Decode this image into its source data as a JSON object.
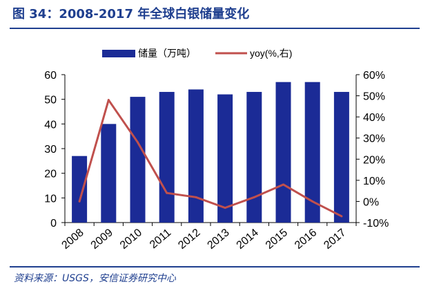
{
  "figure_title": "图 34：2008-2017 年全球白银储量变化",
  "source": "资料来源：USGS，安信证券研究中心",
  "colors": {
    "bar": "#1b2b96",
    "line": "#c0504d",
    "title": "#1f3f8f",
    "axis": "#000000"
  },
  "chart_data": {
    "type": "bar",
    "title": "",
    "categories": [
      "2008",
      "2009",
      "2010",
      "2011",
      "2012",
      "2013",
      "2014",
      "2015",
      "2016",
      "2017"
    ],
    "series": [
      {
        "name": "储量（万吨）",
        "type": "bar",
        "axis": "left",
        "values": [
          27,
          40,
          51,
          53,
          54,
          52,
          53,
          57,
          57,
          53
        ]
      },
      {
        "name": "yoy(%,右)",
        "type": "line",
        "axis": "right",
        "values": [
          0,
          48,
          28,
          4,
          2,
          -3,
          2,
          8,
          0,
          -7
        ]
      }
    ],
    "y_left": {
      "min": 0,
      "max": 60,
      "ticks": [
        "0",
        "10",
        "20",
        "30",
        "40",
        "50",
        "60"
      ]
    },
    "y_right": {
      "min": -10,
      "max": 60,
      "ticks": [
        "-10%",
        "0%",
        "10%",
        "20%",
        "30%",
        "40%",
        "50%",
        "60%"
      ]
    },
    "legend_position": "top-center",
    "grid": false
  }
}
